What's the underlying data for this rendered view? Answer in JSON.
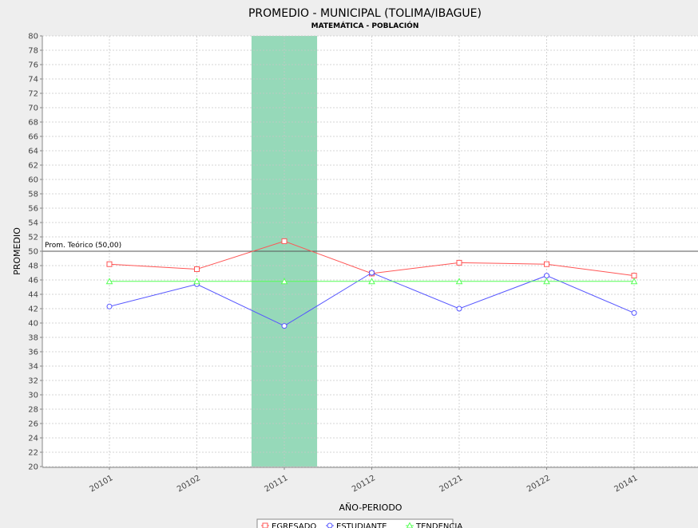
{
  "chart_data": {
    "type": "line",
    "title": "PROMEDIO - MUNICIPAL (TOLIMA/IBAGUE)",
    "subtitle": "MATEMÁTICA - POBLACIÓN",
    "xlabel": "AÑO-PERIODO",
    "ylabel": "PROMEDIO",
    "ylim": [
      20,
      80
    ],
    "ytick_step": 2,
    "categories": [
      "20101",
      "20102",
      "20111",
      "20112",
      "20121",
      "20122",
      "20141"
    ],
    "series": [
      {
        "name": "EGRESADO",
        "color": "#ff5555",
        "marker": "square",
        "values": [
          48.2,
          47.5,
          51.4,
          46.9,
          48.4,
          48.2,
          46.6
        ]
      },
      {
        "name": "ESTUDIANTE",
        "color": "#5555ff",
        "marker": "circle",
        "values": [
          42.3,
          45.4,
          39.6,
          47.0,
          42.0,
          46.6,
          41.4
        ]
      },
      {
        "name": "TENDENCIA",
        "color": "#55ff55",
        "marker": "triangle",
        "values": [
          45.8,
          45.8,
          45.8,
          45.8,
          45.8,
          45.8,
          45.8
        ]
      }
    ],
    "reference_line": {
      "value": 50,
      "label": "Prom. Teórico (50,00)",
      "color": "#555555"
    },
    "highlight_category": "20111",
    "highlight_color": "#96d9b9",
    "grid": true,
    "legend_position": "bottom"
  }
}
